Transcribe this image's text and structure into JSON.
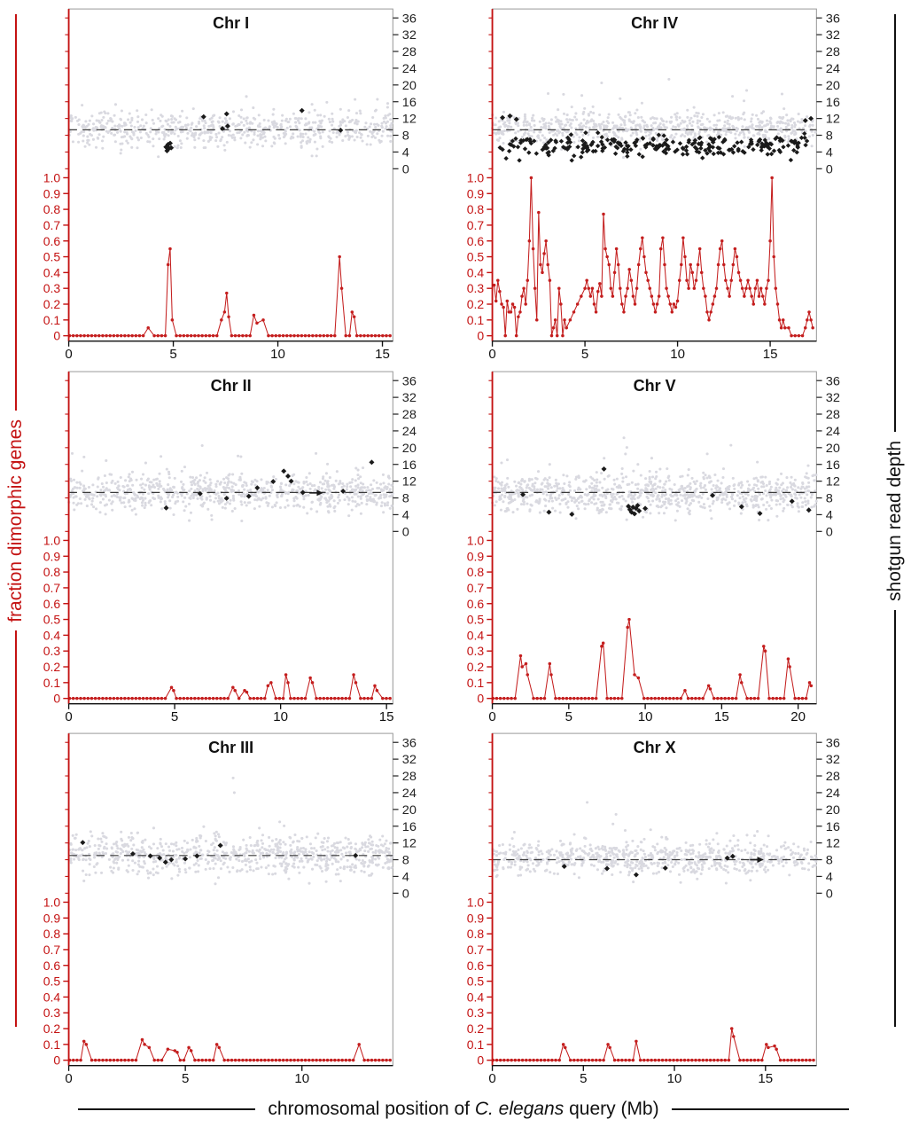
{
  "figure": {
    "left_axis_label": "fraction dimorphic genes",
    "right_axis_label": "shotgun read depth",
    "x_axis_label_pre": "chromosomal position of ",
    "x_axis_label_italic": "C. elegans",
    "x_axis_label_post": " query (Mb)",
    "fraction_ticks": [
      "1.0",
      "0.9",
      "0.8",
      "0.7",
      "0.6",
      "0.5",
      "0.4",
      "0.3",
      "0.2",
      "0.1",
      "0"
    ],
    "depth_ticks": [
      36,
      32,
      28,
      24,
      20,
      16,
      12,
      8,
      4,
      0
    ],
    "colors": {
      "red": "#c41212",
      "red_series": "#c41e1e",
      "gray_points": "#d9d9e0",
      "black_points": "#1a1a1a",
      "dashed_line": "#3a3a3a",
      "frame": "#9a9a9a"
    }
  },
  "chart_data": [
    {
      "type": "scatter+line",
      "title": "Chr I",
      "x_max": 15.5,
      "x_ticks": [
        0,
        5,
        10,
        15
      ],
      "depth_axis_range": [
        0,
        36
      ],
      "fraction_axis_range": [
        0,
        1.0
      ],
      "dashed_depth": 9.3,
      "gray_scatter": {
        "n": 650,
        "mean": 9.3,
        "sd": 2.1,
        "seed": 11
      },
      "gray_extra": [],
      "black_points": [
        [
          4.65,
          5.2
        ],
        [
          4.7,
          4.3
        ],
        [
          4.75,
          5.8
        ],
        [
          4.8,
          4.9
        ],
        [
          4.85,
          6.1
        ],
        [
          4.9,
          5.0
        ],
        [
          6.45,
          12.4
        ],
        [
          7.35,
          9.6
        ],
        [
          7.55,
          13.1
        ],
        [
          7.6,
          10.2
        ],
        [
          11.15,
          13.9
        ],
        [
          13.0,
          9.2
        ]
      ],
      "arrows": [],
      "red_points": [
        [
          3.8,
          0.05
        ],
        [
          4.75,
          0.45
        ],
        [
          4.85,
          0.55
        ],
        [
          4.95,
          0.1
        ],
        [
          7.3,
          0.1
        ],
        [
          7.45,
          0.15
        ],
        [
          7.55,
          0.27
        ],
        [
          7.65,
          0.12
        ],
        [
          8.85,
          0.13
        ],
        [
          9.0,
          0.08
        ],
        [
          9.3,
          0.1
        ],
        [
          12.95,
          0.5
        ],
        [
          13.05,
          0.3
        ],
        [
          13.55,
          0.15
        ],
        [
          13.65,
          0.12
        ]
      ]
    },
    {
      "type": "scatter+line",
      "title": "Chr IV",
      "x_max": 17.5,
      "x_ticks": [
        0,
        5,
        10,
        15
      ],
      "depth_axis_range": [
        0,
        36
      ],
      "fraction_axis_range": [
        0,
        1.0
      ],
      "dashed_depth": 9.3,
      "gray_scatter": {
        "n": 700,
        "mean": 9.8,
        "sd": 1.9,
        "seed": 21
      },
      "gray_extra": [
        [
          5.9,
          20.5
        ]
      ],
      "black_scatter": {
        "n": 250,
        "mean": 5.4,
        "sd": 1.3,
        "seed": 41,
        "x_min": 0.4,
        "x_max": 17.0
      },
      "black_points": [
        [
          0.55,
          12.2
        ],
        [
          0.95,
          12.6
        ],
        [
          1.3,
          11.8
        ],
        [
          16.9,
          11.5
        ],
        [
          17.2,
          12.0
        ]
      ],
      "arrows": [],
      "red_points": [
        [
          0.1,
          0.32
        ],
        [
          0.2,
          0.22
        ],
        [
          0.3,
          0.35
        ],
        [
          0.4,
          0.28
        ],
        [
          0.5,
          0.2
        ],
        [
          0.6,
          0.18
        ],
        [
          0.7,
          0.0
        ],
        [
          0.8,
          0.22
        ],
        [
          0.9,
          0.15
        ],
        [
          1.0,
          0.15
        ],
        [
          1.1,
          0.2
        ],
        [
          1.2,
          0.18
        ],
        [
          1.3,
          0.0
        ],
        [
          1.4,
          0.12
        ],
        [
          1.5,
          0.15
        ],
        [
          1.6,
          0.25
        ],
        [
          1.7,
          0.3
        ],
        [
          1.8,
          0.2
        ],
        [
          1.9,
          0.35
        ],
        [
          2.0,
          0.6
        ],
        [
          2.1,
          1.0
        ],
        [
          2.2,
          0.55
        ],
        [
          2.3,
          0.3
        ],
        [
          2.4,
          0.1
        ],
        [
          2.5,
          0.78
        ],
        [
          2.6,
          0.45
        ],
        [
          2.7,
          0.4
        ],
        [
          2.8,
          0.52
        ],
        [
          2.9,
          0.6
        ],
        [
          3.0,
          0.45
        ],
        [
          3.1,
          0.35
        ],
        [
          3.2,
          0.0
        ],
        [
          3.3,
          0.05
        ],
        [
          3.4,
          0.1
        ],
        [
          3.5,
          0.0
        ],
        [
          3.6,
          0.3
        ],
        [
          3.7,
          0.2
        ],
        [
          3.8,
          0.0
        ],
        [
          3.9,
          0.1
        ],
        [
          4.0,
          0.05
        ],
        [
          4.2,
          0.1
        ],
        [
          4.4,
          0.15
        ],
        [
          4.6,
          0.2
        ],
        [
          4.8,
          0.25
        ],
        [
          5.0,
          0.3
        ],
        [
          5.1,
          0.35
        ],
        [
          5.2,
          0.3
        ],
        [
          5.3,
          0.25
        ],
        [
          5.4,
          0.3
        ],
        [
          5.5,
          0.2
        ],
        [
          5.6,
          0.15
        ],
        [
          5.7,
          0.28
        ],
        [
          5.8,
          0.33
        ],
        [
          5.9,
          0.25
        ],
        [
          6.0,
          0.77
        ],
        [
          6.1,
          0.55
        ],
        [
          6.2,
          0.5
        ],
        [
          6.3,
          0.45
        ],
        [
          6.4,
          0.3
        ],
        [
          6.5,
          0.25
        ],
        [
          6.6,
          0.4
        ],
        [
          6.7,
          0.55
        ],
        [
          6.8,
          0.45
        ],
        [
          6.9,
          0.3
        ],
        [
          7.0,
          0.2
        ],
        [
          7.1,
          0.15
        ],
        [
          7.2,
          0.25
        ],
        [
          7.3,
          0.3
        ],
        [
          7.4,
          0.42
        ],
        [
          7.5,
          0.35
        ],
        [
          7.6,
          0.25
        ],
        [
          7.7,
          0.2
        ],
        [
          7.8,
          0.3
        ],
        [
          7.9,
          0.45
        ],
        [
          8.0,
          0.55
        ],
        [
          8.1,
          0.62
        ],
        [
          8.2,
          0.5
        ],
        [
          8.3,
          0.4
        ],
        [
          8.4,
          0.35
        ],
        [
          8.5,
          0.3
        ],
        [
          8.6,
          0.25
        ],
        [
          8.7,
          0.2
        ],
        [
          8.8,
          0.15
        ],
        [
          8.9,
          0.2
        ],
        [
          9.0,
          0.25
        ],
        [
          9.1,
          0.55
        ],
        [
          9.2,
          0.62
        ],
        [
          9.3,
          0.45
        ],
        [
          9.4,
          0.3
        ],
        [
          9.5,
          0.25
        ],
        [
          9.6,
          0.2
        ],
        [
          9.7,
          0.15
        ],
        [
          9.8,
          0.2
        ],
        [
          9.9,
          0.18
        ],
        [
          10.0,
          0.22
        ],
        [
          10.1,
          0.35
        ],
        [
          10.2,
          0.45
        ],
        [
          10.3,
          0.62
        ],
        [
          10.4,
          0.5
        ],
        [
          10.5,
          0.35
        ],
        [
          10.6,
          0.3
        ],
        [
          10.7,
          0.45
        ],
        [
          10.8,
          0.4
        ],
        [
          10.9,
          0.3
        ],
        [
          11.0,
          0.35
        ],
        [
          11.1,
          0.45
        ],
        [
          11.2,
          0.55
        ],
        [
          11.3,
          0.4
        ],
        [
          11.4,
          0.3
        ],
        [
          11.5,
          0.25
        ],
        [
          11.6,
          0.15
        ],
        [
          11.7,
          0.1
        ],
        [
          11.8,
          0.15
        ],
        [
          11.9,
          0.2
        ],
        [
          12.0,
          0.25
        ],
        [
          12.1,
          0.3
        ],
        [
          12.2,
          0.45
        ],
        [
          12.3,
          0.55
        ],
        [
          12.4,
          0.6
        ],
        [
          12.5,
          0.45
        ],
        [
          12.6,
          0.35
        ],
        [
          12.7,
          0.3
        ],
        [
          12.8,
          0.25
        ],
        [
          12.9,
          0.35
        ],
        [
          13.0,
          0.45
        ],
        [
          13.1,
          0.55
        ],
        [
          13.2,
          0.5
        ],
        [
          13.3,
          0.4
        ],
        [
          13.4,
          0.35
        ],
        [
          13.5,
          0.3
        ],
        [
          13.6,
          0.25
        ],
        [
          13.7,
          0.3
        ],
        [
          13.8,
          0.35
        ],
        [
          13.9,
          0.3
        ],
        [
          14.0,
          0.25
        ],
        [
          14.1,
          0.2
        ],
        [
          14.2,
          0.3
        ],
        [
          14.3,
          0.35
        ],
        [
          14.4,
          0.25
        ],
        [
          14.5,
          0.3
        ],
        [
          14.6,
          0.25
        ],
        [
          14.7,
          0.2
        ],
        [
          14.8,
          0.3
        ],
        [
          14.9,
          0.35
        ],
        [
          15.0,
          0.6
        ],
        [
          15.1,
          1.0
        ],
        [
          15.2,
          0.5
        ],
        [
          15.3,
          0.3
        ],
        [
          15.4,
          0.2
        ],
        [
          15.5,
          0.1
        ],
        [
          15.6,
          0.05
        ],
        [
          15.7,
          0.1
        ],
        [
          15.8,
          0.05
        ],
        [
          16.0,
          0.05
        ],
        [
          16.9,
          0.05
        ],
        [
          17.0,
          0.1
        ],
        [
          17.1,
          0.15
        ],
        [
          17.2,
          0.1
        ],
        [
          17.3,
          0.05
        ]
      ]
    },
    {
      "type": "scatter+line",
      "title": "Chr II",
      "x_max": 15.3,
      "x_ticks": [
        0,
        5,
        10,
        15
      ],
      "depth_axis_range": [
        0,
        36
      ],
      "fraction_axis_range": [
        0,
        1.0
      ],
      "dashed_depth": 9.3,
      "gray_scatter": {
        "n": 800,
        "mean": 9.2,
        "sd": 2.2,
        "seed": 31
      },
      "gray_extra": [
        [
          6.3,
          20.5
        ]
      ],
      "black_points": [
        [
          4.6,
          5.6
        ],
        [
          6.2,
          9.0
        ],
        [
          7.45,
          7.9
        ],
        [
          8.5,
          8.4
        ],
        [
          8.9,
          10.4
        ],
        [
          9.65,
          11.9
        ],
        [
          10.15,
          14.4
        ],
        [
          10.35,
          13.2
        ],
        [
          10.5,
          12.0
        ],
        [
          11.05,
          9.3
        ],
        [
          12.95,
          9.6
        ],
        [
          14.3,
          16.5
        ]
      ],
      "arrows": [
        [
          11.75,
          9.2
        ]
      ],
      "red_points": [
        [
          4.85,
          0.07
        ],
        [
          4.95,
          0.05
        ],
        [
          7.75,
          0.07
        ],
        [
          7.85,
          0.05
        ],
        [
          8.3,
          0.05
        ],
        [
          8.4,
          0.04
        ],
        [
          9.4,
          0.08
        ],
        [
          9.55,
          0.1
        ],
        [
          10.25,
          0.15
        ],
        [
          10.35,
          0.1
        ],
        [
          11.4,
          0.13
        ],
        [
          11.5,
          0.1
        ],
        [
          13.45,
          0.15
        ],
        [
          13.55,
          0.1
        ],
        [
          14.45,
          0.08
        ],
        [
          14.55,
          0.05
        ]
      ]
    },
    {
      "type": "scatter+line",
      "title": "Chr V",
      "x_max": 21.2,
      "x_ticks": [
        0,
        5,
        10,
        15,
        20
      ],
      "depth_axis_range": [
        0,
        36
      ],
      "fraction_axis_range": [
        0,
        1.0
      ],
      "dashed_depth": 9.3,
      "gray_scatter": {
        "n": 900,
        "mean": 9.0,
        "sd": 2.3,
        "seed": 51
      },
      "gray_extra": [],
      "black_points": [
        [
          2.0,
          8.8
        ],
        [
          3.7,
          4.6
        ],
        [
          5.2,
          4.1
        ],
        [
          7.3,
          14.9
        ],
        [
          8.9,
          6.0
        ],
        [
          9.0,
          5.2
        ],
        [
          9.1,
          4.6
        ],
        [
          9.2,
          5.8
        ],
        [
          9.3,
          4.2
        ],
        [
          9.4,
          5.5
        ],
        [
          9.5,
          6.2
        ],
        [
          9.6,
          4.9
        ],
        [
          10.0,
          5.5
        ],
        [
          14.4,
          8.6
        ],
        [
          16.3,
          5.9
        ],
        [
          17.5,
          4.3
        ],
        [
          19.6,
          7.2
        ],
        [
          20.7,
          5.1
        ]
      ],
      "arrows": [],
      "red_points": [
        [
          1.85,
          0.27
        ],
        [
          1.95,
          0.2
        ],
        [
          2.2,
          0.22
        ],
        [
          2.3,
          0.15
        ],
        [
          3.75,
          0.22
        ],
        [
          3.85,
          0.15
        ],
        [
          7.15,
          0.33
        ],
        [
          7.25,
          0.35
        ],
        [
          8.85,
          0.45
        ],
        [
          8.95,
          0.5
        ],
        [
          9.3,
          0.15
        ],
        [
          9.55,
          0.13
        ],
        [
          12.6,
          0.05
        ],
        [
          14.15,
          0.08
        ],
        [
          14.25,
          0.06
        ],
        [
          16.2,
          0.15
        ],
        [
          16.3,
          0.1
        ],
        [
          17.75,
          0.33
        ],
        [
          17.85,
          0.3
        ],
        [
          19.35,
          0.25
        ],
        [
          19.45,
          0.2
        ],
        [
          20.75,
          0.1
        ],
        [
          20.85,
          0.08
        ]
      ]
    },
    {
      "type": "scatter+line",
      "title": "Chr III",
      "x_max": 13.9,
      "x_ticks": [
        0,
        5,
        10
      ],
      "depth_axis_range": [
        0,
        36
      ],
      "fraction_axis_range": [
        0,
        1.0
      ],
      "dashed_depth": 9.0,
      "gray_scatter": {
        "n": 800,
        "mean": 9.2,
        "sd": 2.4,
        "seed": 61
      },
      "gray_extra": [
        [
          7.05,
          27.5
        ],
        [
          7.1,
          24.0
        ]
      ],
      "black_points": [
        [
          0.6,
          12.1
        ],
        [
          2.75,
          9.4
        ],
        [
          3.5,
          8.9
        ],
        [
          3.9,
          8.4
        ],
        [
          4.15,
          7.4
        ],
        [
          4.4,
          8.0
        ],
        [
          5.0,
          8.2
        ],
        [
          5.5,
          8.9
        ],
        [
          6.5,
          11.4
        ],
        [
          12.3,
          9.0
        ]
      ],
      "arrows": [],
      "red_points": [
        [
          0.65,
          0.12
        ],
        [
          0.75,
          0.1
        ],
        [
          3.15,
          0.13
        ],
        [
          3.25,
          0.1
        ],
        [
          3.45,
          0.08
        ],
        [
          4.25,
          0.07
        ],
        [
          4.55,
          0.06
        ],
        [
          4.65,
          0.05
        ],
        [
          5.15,
          0.08
        ],
        [
          5.25,
          0.06
        ],
        [
          6.35,
          0.1
        ],
        [
          6.45,
          0.08
        ],
        [
          12.45,
          0.1
        ]
      ]
    },
    {
      "type": "scatter+line",
      "title": "Chr X",
      "x_max": 17.8,
      "x_ticks": [
        0,
        5,
        10,
        15
      ],
      "depth_axis_range": [
        0,
        36
      ],
      "fraction_axis_range": [
        0,
        1.0
      ],
      "dashed_depth": 8.0,
      "gray_scatter": {
        "n": 750,
        "mean": 8.3,
        "sd": 1.9,
        "seed": 71
      },
      "gray_extra": [],
      "black_points": [
        [
          3.95,
          6.4
        ],
        [
          6.3,
          5.9
        ],
        [
          7.9,
          4.4
        ],
        [
          9.5,
          6.0
        ],
        [
          12.9,
          8.4
        ],
        [
          13.2,
          8.8
        ]
      ],
      "arrows": [
        [
          14.6,
          8.0
        ]
      ],
      "red_points": [
        [
          3.9,
          0.1
        ],
        [
          4.0,
          0.08
        ],
        [
          6.35,
          0.1
        ],
        [
          6.45,
          0.08
        ],
        [
          7.9,
          0.12
        ],
        [
          13.15,
          0.2
        ],
        [
          13.25,
          0.15
        ],
        [
          15.05,
          0.1
        ],
        [
          15.15,
          0.08
        ],
        [
          15.5,
          0.09
        ],
        [
          15.6,
          0.07
        ]
      ]
    }
  ]
}
